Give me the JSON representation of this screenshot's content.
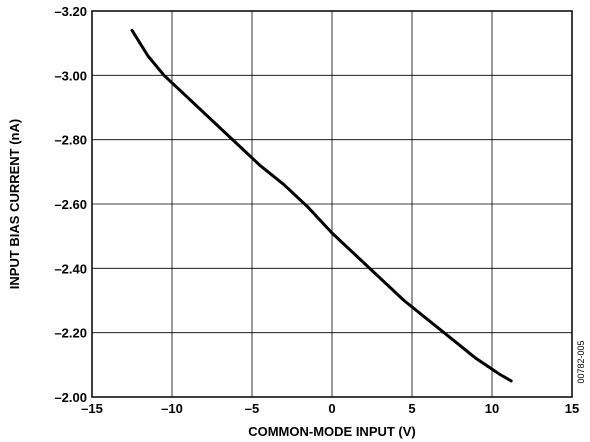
{
  "chart_data": {
    "type": "line",
    "title": "",
    "xlabel": "COMMON-MODE INPUT (V)",
    "ylabel": "INPUT BIAS CURRENT (nA)",
    "xlim": [
      -15,
      15
    ],
    "ylim": [
      -2.0,
      -3.2
    ],
    "x_ticks": [
      -15,
      -10,
      -5,
      0,
      5,
      10,
      15
    ],
    "x_tick_labels": [
      "–15",
      "–10",
      "–5",
      "0",
      "5",
      "10",
      "15"
    ],
    "y_ticks": [
      -3.2,
      -3.0,
      -2.8,
      -2.6,
      -2.4,
      -2.2,
      -2.0
    ],
    "y_tick_labels": [
      "–3.20",
      "–3.00",
      "–2.80",
      "–2.60",
      "–2.40",
      "–2.20",
      "–2.00"
    ],
    "grid": true,
    "series": [
      {
        "color": "#000000",
        "x": [
          -12.5,
          -11.5,
          -10.5,
          -9.0,
          -7.5,
          -6.0,
          -4.5,
          -3.0,
          -1.5,
          0.0,
          1.5,
          3.0,
          4.5,
          6.0,
          7.5,
          9.0,
          10.5,
          11.2
        ],
        "y": [
          -3.14,
          -3.06,
          -3.0,
          -2.93,
          -2.86,
          -2.79,
          -2.72,
          -2.66,
          -2.59,
          -2.51,
          -2.44,
          -2.37,
          -2.3,
          -2.24,
          -2.18,
          -2.12,
          -2.07,
          -2.05
        ]
      }
    ]
  },
  "figure_id": "00782-005"
}
